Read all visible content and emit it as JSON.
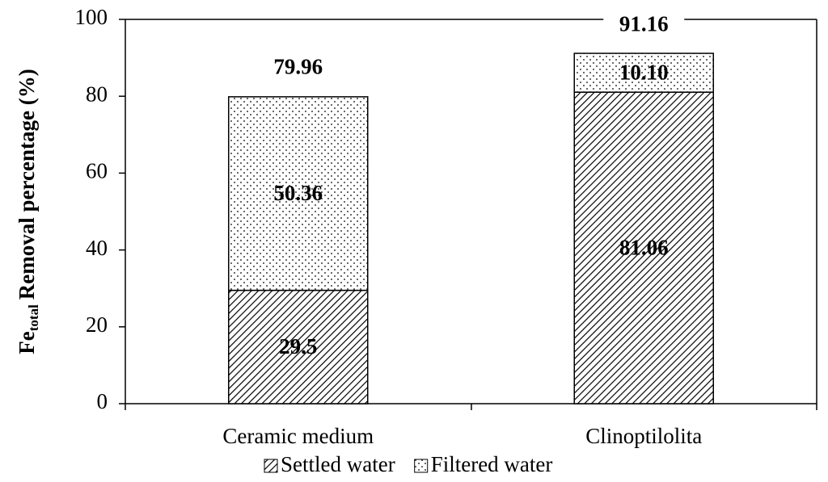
{
  "chart_data": {
    "type": "stacked_bar",
    "ylabel_parts": [
      "Fe",
      "total",
      "Removal percentage (%)"
    ],
    "categories": [
      "Ceramic medium",
      "Clinoptilolita"
    ],
    "series": [
      {
        "name": "Settled water",
        "pattern": "hatch",
        "values": [
          29.5,
          81.06
        ]
      },
      {
        "name": "Filtered water",
        "pattern": "dots",
        "values": [
          50.36,
          10.1
        ],
        "value_labels": [
          "50.36",
          "10.10"
        ]
      }
    ],
    "totals": [
      79.96,
      91.16
    ],
    "ylim": [
      0,
      100
    ],
    "yticks": [
      0,
      20,
      40,
      60,
      80,
      100
    ]
  }
}
